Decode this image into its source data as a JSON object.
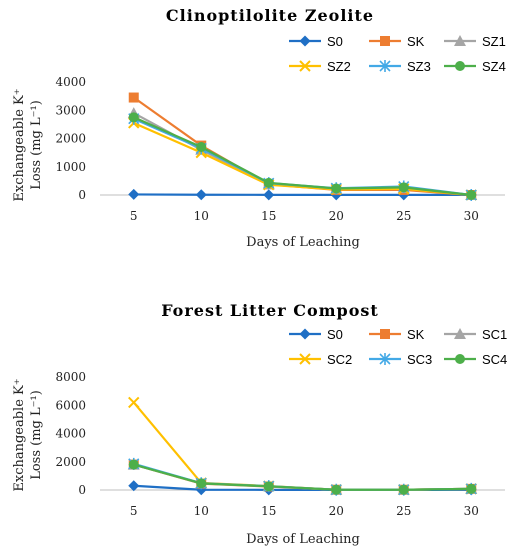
{
  "chart_data": [
    {
      "type": "line",
      "title": "Clinoptilolite Zeolite",
      "xlabel": "Days of Leaching",
      "ylabel_line1": "Exchangeable K⁺",
      "ylabel_line2": "Loss (mg L⁻¹)",
      "x": [
        5,
        10,
        15,
        20,
        25,
        30
      ],
      "ylim": [
        0,
        4000
      ],
      "yticks": [
        0,
        1000,
        2000,
        3000,
        4000
      ],
      "legend_position": "top",
      "series": [
        {
          "name": "S0",
          "color": "#1f6fc5",
          "marker": "diamond",
          "values": [
            20,
            10,
            5,
            5,
            5,
            5
          ]
        },
        {
          "name": "SK",
          "color": "#ed7d31",
          "marker": "square",
          "values": [
            3450,
            1750,
            380,
            180,
            180,
            0
          ]
        },
        {
          "name": "SZ1",
          "color": "#a5a5a5",
          "marker": "triangle",
          "values": [
            2900,
            1600,
            380,
            220,
            250,
            0
          ]
        },
        {
          "name": "SZ2",
          "color": "#ffc000",
          "marker": "x",
          "values": [
            2550,
            1500,
            360,
            200,
            220,
            0
          ]
        },
        {
          "name": "SZ3",
          "color": "#43a9e6",
          "marker": "star",
          "values": [
            2700,
            1650,
            420,
            240,
            300,
            0
          ]
        },
        {
          "name": "SZ4",
          "color": "#4daf4a",
          "marker": "circle",
          "values": [
            2750,
            1700,
            430,
            230,
            270,
            0
          ]
        }
      ]
    },
    {
      "type": "line",
      "title": "Forest Litter Compost",
      "xlabel": "Days of Leaching",
      "ylabel_line1": "Exchangeable K⁺",
      "ylabel_line2": "Loss (mg L⁻¹)",
      "x": [
        5,
        10,
        15,
        20,
        25,
        30
      ],
      "ylim": [
        0,
        8000
      ],
      "yticks": [
        0,
        2000,
        4000,
        6000,
        8000
      ],
      "legend_position": "top",
      "series": [
        {
          "name": "S0",
          "color": "#1f6fc5",
          "marker": "diamond",
          "values": [
            300,
            20,
            10,
            5,
            5,
            5
          ]
        },
        {
          "name": "SK",
          "color": "#ed7d31",
          "marker": "square",
          "values": [
            1800,
            450,
            250,
            20,
            20,
            80
          ]
        },
        {
          "name": "SC1",
          "color": "#a5a5a5",
          "marker": "triangle",
          "values": [
            1800,
            480,
            270,
            20,
            20,
            80
          ]
        },
        {
          "name": "SC2",
          "color": "#ffc000",
          "marker": "x",
          "values": [
            6200,
            500,
            280,
            20,
            20,
            80
          ]
        },
        {
          "name": "SC3",
          "color": "#43a9e6",
          "marker": "star",
          "values": [
            1850,
            480,
            270,
            20,
            20,
            80
          ]
        },
        {
          "name": "SC4",
          "color": "#4daf4a",
          "marker": "circle",
          "values": [
            1800,
            470,
            260,
            20,
            20,
            80
          ]
        }
      ]
    }
  ]
}
